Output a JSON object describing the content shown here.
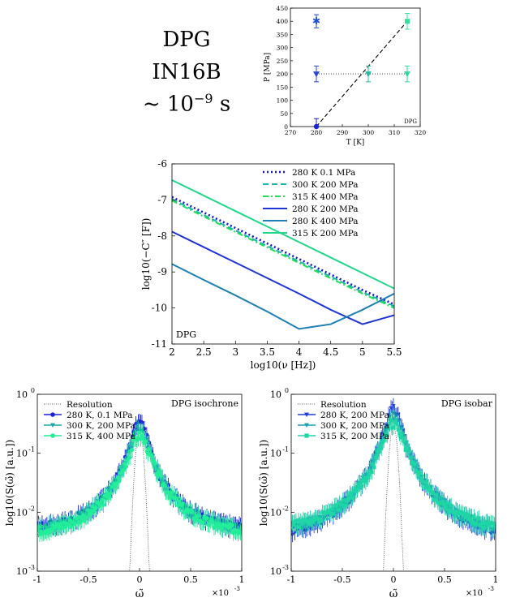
{
  "header": {
    "material": "DPG",
    "instrument": "IN16B",
    "timescale_prefix": "~ 10",
    "timescale_exp": "−9",
    "timescale_unit": " s"
  },
  "chart_data": [
    {
      "id": "phase",
      "type": "scatter",
      "xlabel": "T [K]",
      "ylabel": "P [MPa]",
      "xlim": [
        270,
        320
      ],
      "ylim": [
        0,
        450
      ],
      "xticks": [
        270,
        280,
        290,
        300,
        310,
        320
      ],
      "yticks": [
        0,
        50,
        100,
        150,
        200,
        250,
        300,
        350,
        400,
        450
      ],
      "annotation": "DPG",
      "points": [
        {
          "x": 280,
          "y": 400,
          "err": 25,
          "marker": "star",
          "color": "#1f4fd6"
        },
        {
          "x": 280,
          "y": 200,
          "err": 30,
          "marker": "tri-down",
          "color": "#2b45d8"
        },
        {
          "x": 280,
          "y": 0,
          "err": 30,
          "marker": "circle",
          "color": "#1a22d6"
        },
        {
          "x": 300,
          "y": 200,
          "err": 30,
          "marker": "tri-down",
          "color": "#26b9a0"
        },
        {
          "x": 315,
          "y": 400,
          "err": 30,
          "marker": "square",
          "color": "#34e39a"
        },
        {
          "x": 315,
          "y": 200,
          "err": 30,
          "marker": "tri-down",
          "color": "#2fd6a0"
        }
      ],
      "lines": [
        {
          "x": [
            280,
            315
          ],
          "y": [
            0,
            400
          ],
          "style": "dashed",
          "color": "#000000"
        },
        {
          "x": [
            280,
            315
          ],
          "y": [
            200,
            200
          ],
          "style": "dotted",
          "color": "#555555"
        }
      ]
    },
    {
      "id": "capacitance",
      "type": "line",
      "xlabel": "log10(ν [Hz])",
      "ylabel": "log10(−C″ [F])",
      "xlim": [
        2,
        5.5
      ],
      "ylim": [
        -11,
        -6
      ],
      "xticks": [
        "2",
        "2.5",
        "3",
        "3.5",
        "4",
        "4.5",
        "5",
        "5.5"
      ],
      "yticks": [
        "-6",
        "-7",
        "-8",
        "-9",
        "-10",
        "-11"
      ],
      "annotation": "DPG",
      "series": [
        {
          "name": "280 K 0.1 MPa",
          "color": "#1515c9",
          "style": "dotted",
          "x": [
            2,
            2.5,
            3,
            3.5,
            4,
            4.5,
            5,
            5.5
          ],
          "y": [
            -6.92,
            -7.35,
            -7.78,
            -8.21,
            -8.64,
            -9.07,
            -9.5,
            -9.9
          ]
        },
        {
          "name": "300 K 200 MPa",
          "color": "#1bb5ad",
          "style": "dashed",
          "x": [
            2,
            2.5,
            3,
            3.5,
            4,
            4.5,
            5,
            5.5
          ],
          "y": [
            -6.98,
            -7.42,
            -7.85,
            -8.28,
            -8.71,
            -9.13,
            -9.56,
            -9.95
          ]
        },
        {
          "name": "315 K 400 MPa",
          "color": "#22dd55",
          "style": "dashdot",
          "x": [
            2,
            2.5,
            3,
            3.5,
            4,
            4.5,
            5,
            5.5
          ],
          "y": [
            -7.02,
            -7.46,
            -7.89,
            -8.32,
            -8.75,
            -9.18,
            -9.6,
            -10.0
          ]
        },
        {
          "name": "280 K 200 MPa",
          "color": "#1f35d6",
          "style": "solid",
          "x": [
            2,
            2.5,
            3,
            3.5,
            4,
            4.5,
            5,
            5.5
          ],
          "y": [
            -7.88,
            -8.31,
            -8.74,
            -9.17,
            -9.6,
            -10.05,
            -10.45,
            -10.2
          ]
        },
        {
          "name": "280 K 400 MPa",
          "color": "#1c7fb6",
          "style": "solid",
          "x": [
            2,
            2.5,
            3,
            3.5,
            4,
            4.5,
            5,
            5.5
          ],
          "y": [
            -8.78,
            -9.22,
            -9.65,
            -10.1,
            -10.58,
            -10.45,
            -10.05,
            -9.6
          ]
        },
        {
          "name": "315 K 200 MPa",
          "color": "#22d68a",
          "style": "solid",
          "x": [
            2,
            2.5,
            3,
            3.5,
            4,
            4.5,
            5,
            5.5
          ],
          "y": [
            -6.45,
            -6.88,
            -7.31,
            -7.74,
            -8.17,
            -8.6,
            -9.03,
            -9.46
          ]
        }
      ]
    },
    {
      "id": "isochrone",
      "type": "scatter",
      "title": "DPG isochrone",
      "xlabel": "ω̃",
      "ylabel": "log10(S(ω̃) [a.u.])",
      "xlim": [
        -1,
        1
      ],
      "ylim_log": [
        -3,
        0
      ],
      "xticks": [
        "-1",
        "-0.5",
        "0",
        "0.5",
        "1"
      ],
      "xscale": "×10",
      "xscale_exp": "-3",
      "yticks": [
        "10",
        "10",
        "10",
        "10"
      ],
      "ytick_exps": [
        "0",
        "-1",
        "-2",
        "-3"
      ],
      "yscale": "log",
      "peak": 0.33,
      "resolution_peak": 0.25,
      "series": [
        {
          "name": "Resolution",
          "color": "#555555",
          "style": "dotted"
        },
        {
          "name": "280 K, 0.1 MPa",
          "color": "#1a22d6",
          "marker": "circle",
          "baseline": 0.005
        },
        {
          "name": "300 K, 200 MPa",
          "color": "#1aa8aa",
          "marker": "tri-down",
          "baseline": 0.0046
        },
        {
          "name": "315 K, 400 MPa",
          "color": "#22ee99",
          "marker": "circle",
          "baseline": 0.0044
        }
      ]
    },
    {
      "id": "isobar",
      "type": "scatter",
      "title": "DPG isobar",
      "xlabel": "ω̃",
      "ylabel": "log10(S(ω̃) [a.u.])",
      "xlim": [
        -1,
        1
      ],
      "ylim_log": [
        -3,
        0
      ],
      "xticks": [
        "-1",
        "-0.5",
        "0",
        "0.5",
        "1"
      ],
      "xscale": "×10",
      "xscale_exp": "-3",
      "yticks": [
        "10",
        "10",
        "10",
        "10"
      ],
      "ytick_exps": [
        "0",
        "-1",
        "-2",
        "-3"
      ],
      "yscale": "log",
      "peak": 0.55,
      "resolution_peak": 0.3,
      "series": [
        {
          "name": "Resolution",
          "color": "#555555",
          "style": "dotted"
        },
        {
          "name": "280 K, 200 MPa",
          "color": "#1f3fd6",
          "marker": "tri-down",
          "baseline": 0.004
        },
        {
          "name": "300 K, 200 MPa",
          "color": "#1a9fb5",
          "marker": "tri-down",
          "baseline": 0.0045
        },
        {
          "name": "315 K, 200 MPa",
          "color": "#1ed6a5",
          "marker": "square",
          "baseline": 0.005
        }
      ]
    }
  ]
}
